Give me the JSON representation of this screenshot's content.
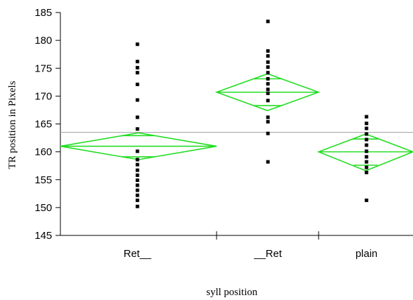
{
  "chart_data": {
    "type": "scatter",
    "subtype": "means-diamonds-oneway",
    "xlabel": "syll position",
    "ylabel": "TR position in Pixels",
    "categories": [
      "Ret__",
      "__Ret",
      "plain"
    ],
    "ylim": [
      145,
      185
    ],
    "yticks": [
      145,
      150,
      155,
      160,
      165,
      170,
      175,
      180,
      185
    ],
    "grand_mean": 163.5,
    "grid": false,
    "colors": {
      "diamond": "#22dd22",
      "grand_mean_line": "#aaaaaa",
      "points": "#000000"
    },
    "groups": [
      {
        "category": "Ret__",
        "mean": 161.0,
        "ci": [
          158.6,
          163.4
        ],
        "overlap": [
          159.1,
          162.9
        ],
        "points": [
          150.2,
          151.3,
          152.2,
          153.1,
          154.0,
          154.9,
          155.8,
          156.7,
          157.7,
          158.6,
          160.1,
          164.1,
          166.2,
          169.3,
          172.1,
          174.2,
          175.1,
          176.2,
          179.3
        ]
      },
      {
        "category": "__Ret",
        "mean": 170.7,
        "ci": [
          167.4,
          174.0
        ],
        "overlap": [
          168.3,
          173.1
        ],
        "points": [
          158.2,
          163.3,
          165.4,
          166.2,
          169.2,
          170.5,
          171.2,
          172.2,
          173.1,
          174.2,
          175.2,
          176.1,
          177.2,
          178.1,
          183.4
        ]
      },
      {
        "category": "plain",
        "mean": 160.0,
        "ci": [
          156.6,
          163.2
        ],
        "overlap": [
          157.6,
          162.3
        ],
        "points": [
          151.3,
          156.3,
          157.2,
          158.2,
          159.1,
          160.1,
          161.2,
          162.2,
          163.2,
          164.2,
          165.1,
          166.3
        ]
      }
    ]
  }
}
